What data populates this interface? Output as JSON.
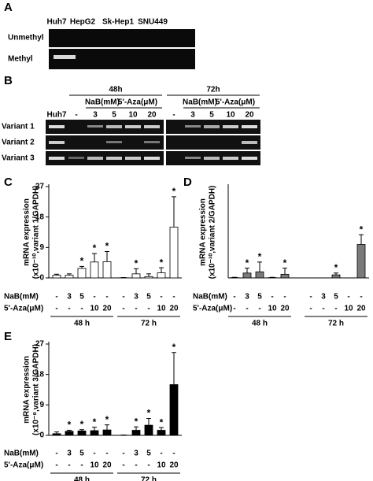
{
  "panel_a": {
    "label": "A",
    "lanes": [
      "Huh7",
      "HepG2",
      "Sk-Hep1",
      "SNU449"
    ],
    "rows": [
      "Unmethyl",
      "Methyl"
    ]
  },
  "panel_b": {
    "label": "B",
    "groups": [
      {
        "label": "48h",
        "treatments": [
          "NaB(mM)",
          "5'-Aza(μM)"
        ]
      },
      {
        "label": "72h",
        "treatments": [
          "NaB(mM)",
          "5'-Aza(μM)"
        ]
      }
    ],
    "lanes": [
      "Huh7",
      "-",
      "3",
      "5",
      "10",
      "20",
      "-",
      "3",
      "5",
      "10",
      "20"
    ],
    "rows": [
      "Variant 1",
      "Variant 2",
      "Variant 3"
    ]
  },
  "chart_data": [
    {
      "type": "bar",
      "panel": "C",
      "y_label": [
        "mRNA expression",
        "(x10⁻¹⁰,variant 1/GAPDH)"
      ],
      "color": "#ffffff",
      "values": [
        0.8,
        0.8,
        2.8,
        4.7,
        4.8,
        0.05,
        1.2,
        0.4,
        1.5,
        15
      ],
      "errors": [
        0.3,
        0.4,
        0.6,
        2.5,
        3,
        0.05,
        1.5,
        0.8,
        1.5,
        9
      ],
      "ylim": [
        0,
        27
      ],
      "yticks": [
        0,
        9,
        18,
        27
      ],
      "annotations": [
        {
          "index": 2,
          "text": "*"
        },
        {
          "index": 3,
          "text": "*"
        },
        {
          "index": 4,
          "text": "*"
        },
        {
          "index": 6,
          "text": "*"
        },
        {
          "index": 8,
          "text": "*"
        },
        {
          "index": 9,
          "text": "*"
        }
      ],
      "x_table": {
        "rows": [
          {
            "label": "NaB(mM)",
            "cells": [
              "-",
              "3",
              "5",
              "-",
              "-",
              "-",
              "3",
              "5",
              "-",
              "-"
            ]
          },
          {
            "label": "5'-Aza(μM)",
            "cells": [
              "-",
              "-",
              "-",
              "10",
              "20",
              "-",
              "-",
              "-",
              "10",
              "20"
            ]
          }
        ],
        "groups": [
          "48 h",
          "72 h"
        ]
      }
    },
    {
      "type": "bar",
      "panel": "D",
      "y_label": [
        "mRNA expression",
        "(x10⁻¹⁰,variant 2/GAPDH)"
      ],
      "color": "#7a7a7a",
      "values": [
        0.05,
        0.8,
        1,
        0.05,
        0.6,
        0,
        0,
        0.5,
        0,
        5.5
      ],
      "errors": [
        0.05,
        0.8,
        1.6,
        0.05,
        1,
        0,
        0,
        0.3,
        0,
        1.6
      ],
      "ylim": [
        0,
        15
      ],
      "annotations": [
        {
          "index": 1,
          "text": "*"
        },
        {
          "index": 2,
          "text": "*"
        },
        {
          "index": 4,
          "text": "*"
        },
        {
          "index": 7,
          "text": "*"
        },
        {
          "index": 9,
          "text": "*"
        }
      ],
      "x_table": {
        "rows": [
          {
            "label": "NaB(mM)",
            "cells": [
              "-",
              "3",
              "5",
              "-",
              "-",
              "-",
              "3",
              "5",
              "-",
              "-"
            ]
          },
          {
            "label": "5'-Aza(μM)",
            "cells": [
              "-",
              "-",
              "-",
              "10",
              "20",
              "-",
              "-",
              "-",
              "10",
              "20"
            ]
          }
        ],
        "groups": [
          "48 h",
          "72 h"
        ]
      }
    },
    {
      "type": "bar",
      "panel": "E",
      "y_label": [
        "mRNA expression",
        "(x10⁻⁸,variant 3/GAPDH)"
      ],
      "color": "#000000",
      "values": [
        0.5,
        1.2,
        1.3,
        1.4,
        1.6,
        0.05,
        1.5,
        3,
        1.5,
        15
      ],
      "errors": [
        0.5,
        0.3,
        0.4,
        1,
        1.5,
        0.05,
        1,
        2,
        0.8,
        9.5
      ],
      "ylim": [
        0,
        27
      ],
      "yticks": [
        0,
        9,
        18,
        27
      ],
      "annotations": [
        {
          "index": 1,
          "text": "*"
        },
        {
          "index": 2,
          "text": "*"
        },
        {
          "index": 3,
          "text": "*"
        },
        {
          "index": 4,
          "text": "*"
        },
        {
          "index": 6,
          "text": "*"
        },
        {
          "index": 7,
          "text": "*"
        },
        {
          "index": 8,
          "text": "*"
        },
        {
          "index": 9,
          "text": "*"
        }
      ],
      "x_table": {
        "rows": [
          {
            "label": "NaB(mM)",
            "cells": [
              "-",
              "3",
              "5",
              "-",
              "-",
              "-",
              "3",
              "5",
              "-",
              "-"
            ]
          },
          {
            "label": "5'-Aza(μM)",
            "cells": [
              "-",
              "-",
              "-",
              "10",
              "20",
              "-",
              "-",
              "-",
              "10",
              "20"
            ]
          }
        ],
        "groups": [
          "48 h",
          "72 h"
        ]
      }
    }
  ]
}
